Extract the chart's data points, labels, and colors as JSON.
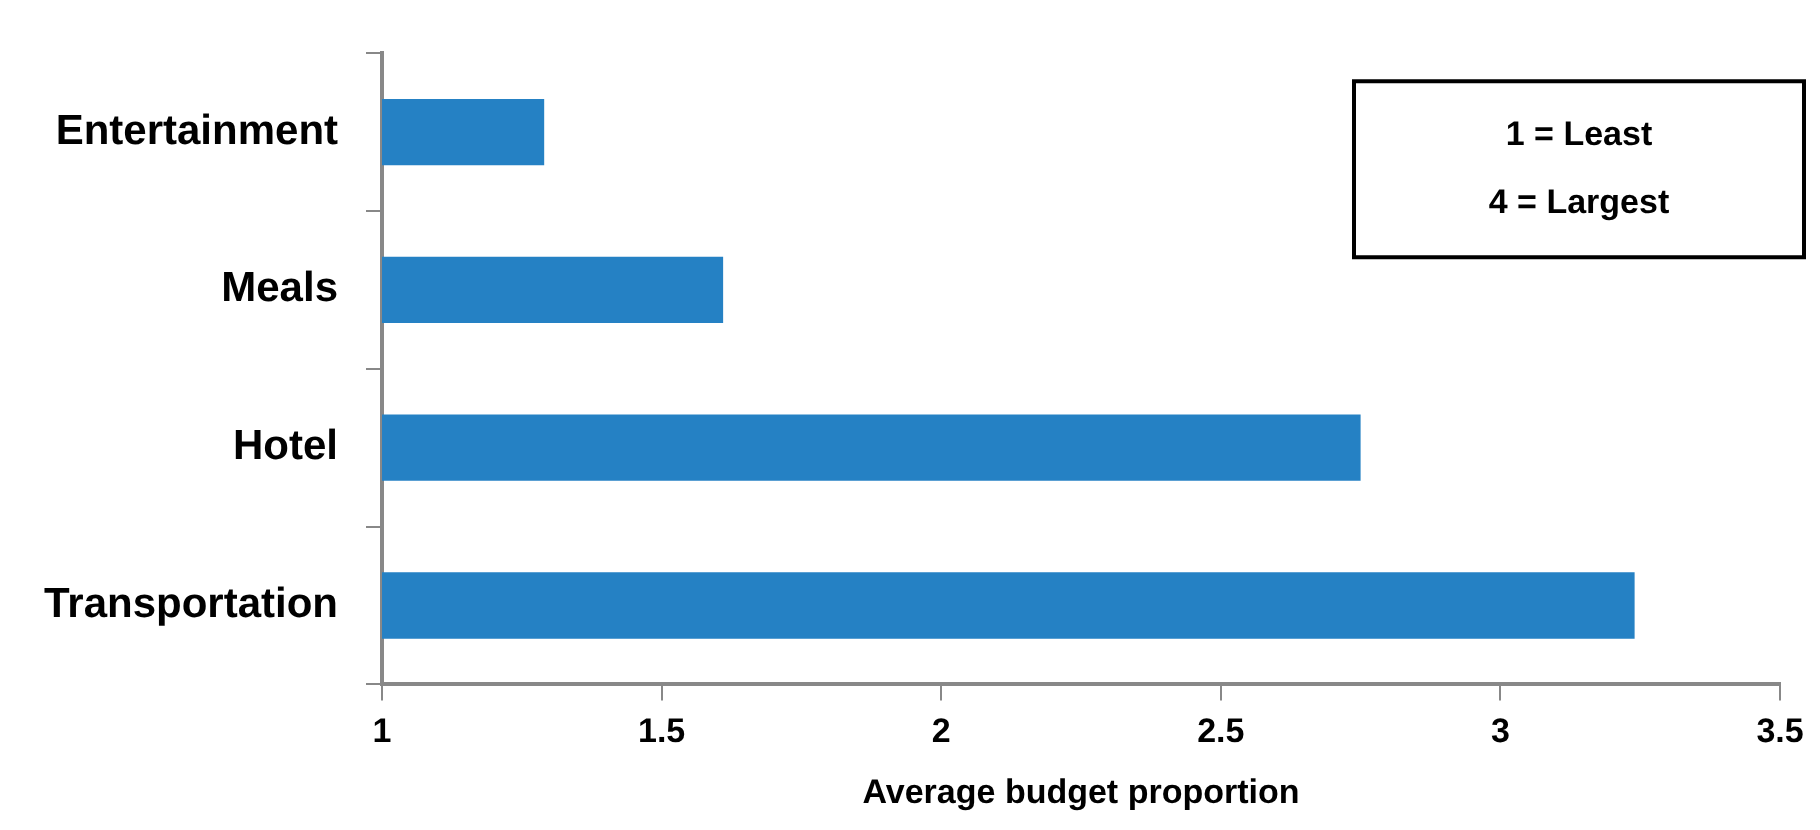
{
  "chart_data": {
    "type": "bar",
    "orientation": "horizontal",
    "categories": [
      "Entertainment",
      "Meals",
      "Hotel",
      "Transportation"
    ],
    "values": [
      1.29,
      1.61,
      2.75,
      3.24
    ],
    "color": "#2581c4",
    "xlim": [
      1,
      3.5
    ],
    "xticks": [
      1,
      1.5,
      2,
      2.5,
      3,
      3.5
    ],
    "xlabel": "Average budget proportion",
    "grid": false,
    "legend": false,
    "annotations": [
      "1 = Least",
      "4 = Largest"
    ]
  }
}
